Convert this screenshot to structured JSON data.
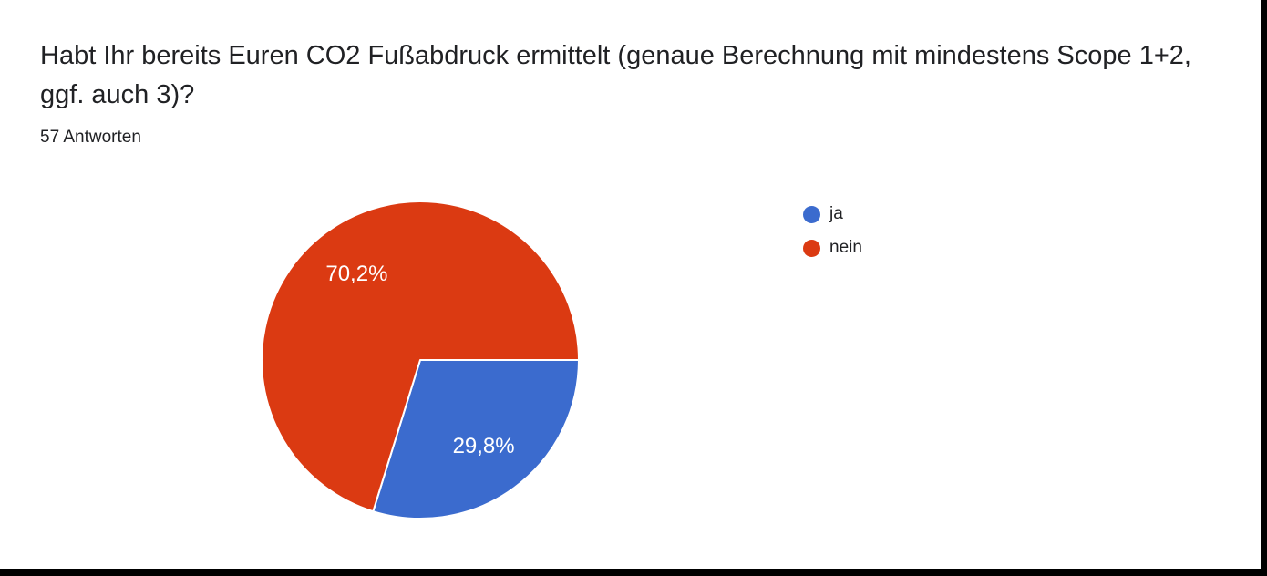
{
  "header": {
    "title": "Habt Ihr bereits Euren CO2 Fußabdruck ermittelt (genaue Berechnung mit mindestens Scope 1+2, ggf. auch 3)?",
    "responses_count": "57 Antworten"
  },
  "chart_data": {
    "type": "pie",
    "title": "Habt Ihr bereits Euren CO2 Fußabdruck ermittelt (genaue Berechnung mit mindestens Scope 1+2, ggf. auch 3)?",
    "subtitle": "57 Antworten",
    "categories": [
      "ja",
      "nein"
    ],
    "values": [
      29.8,
      70.2
    ],
    "slices": [
      {
        "label": "ja",
        "percent": 29.8,
        "percent_label": "29,8%",
        "color": "#3b6bce"
      },
      {
        "label": "nein",
        "percent": 70.2,
        "percent_label": "70,2%",
        "color": "#db3a12"
      }
    ],
    "units": "percent",
    "start_angle_deg": 0,
    "direction": "clockwise",
    "legend_position": "right",
    "slice_label_color": "#ffffff",
    "slice_border_color": "#ffffff"
  },
  "frame": {
    "right_border_color": "#000000",
    "bottom_border_color": "#000000"
  }
}
